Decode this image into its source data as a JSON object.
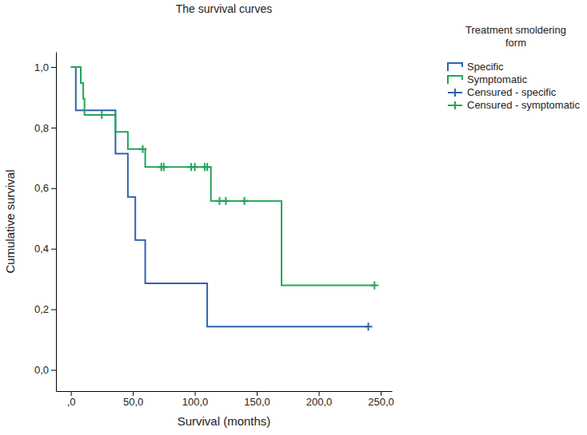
{
  "chart_data": {
    "type": "step",
    "title": "The survival curves",
    "x_label": "Survival (months)",
    "y_label": "Cumulative survival",
    "legend_title": "Treatment smoldering form",
    "legend": "right",
    "xlim": [
      -12,
      259
    ],
    "ylim": [
      -0.07,
      1.05
    ],
    "xticks": [
      {
        "value": 0,
        "label": ",0"
      },
      {
        "value": 50,
        "label": "50,0"
      },
      {
        "value": 100,
        "label": "100,0"
      },
      {
        "value": 150,
        "label": "150,0"
      },
      {
        "value": 200,
        "label": "200,0"
      },
      {
        "value": 250,
        "label": "250,0"
      }
    ],
    "yticks": [
      {
        "value": 0,
        "label": "0,0"
      },
      {
        "value": 0.2,
        "label": "0,2"
      },
      {
        "value": 0.4,
        "label": "0,4"
      },
      {
        "value": 0.6,
        "label": "0,6"
      },
      {
        "value": 0.8,
        "label": "0,8"
      },
      {
        "value": 1,
        "label": "1,0"
      }
    ],
    "series": [
      {
        "name": "Specific",
        "type": "step",
        "color": "#2f63a8",
        "x": [
          0,
          4,
          36,
          46,
          52,
          60,
          110,
          240
        ],
        "values": [
          1,
          0.857,
          0.714,
          0.571,
          0.429,
          0.286,
          0.143,
          0.143
        ]
      },
      {
        "name": "Symptomatic",
        "type": "step",
        "color": "#22a559",
        "x": [
          0,
          8,
          10,
          11,
          36,
          46,
          60,
          113,
          170,
          245
        ],
        "values": [
          1,
          0.947,
          0.895,
          0.842,
          0.786,
          0.729,
          0.67,
          0.558,
          0.279,
          0.279
        ]
      },
      {
        "name": "Censured - specific",
        "type": "scatter",
        "marker": "plus",
        "color": "#2f63a8",
        "x": [
          240
        ],
        "values": [
          0.143
        ]
      },
      {
        "name": "Censured - symptomatic",
        "type": "scatter",
        "marker": "plus",
        "color": "#22a559",
        "x": [
          25,
          58,
          73,
          75,
          97,
          100,
          108,
          110,
          120,
          125,
          140,
          245
        ],
        "values": [
          0.842,
          0.729,
          0.67,
          0.67,
          0.67,
          0.67,
          0.67,
          0.67,
          0.558,
          0.558,
          0.558,
          0.279
        ]
      }
    ]
  }
}
